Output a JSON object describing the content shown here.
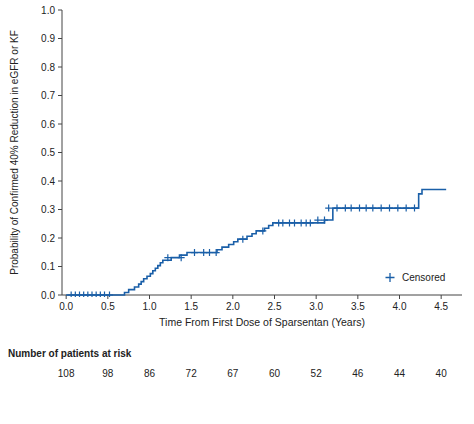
{
  "chart_data": {
    "type": "line",
    "xlabel": "Time From First Dose of Sparsentan (Years)",
    "ylabel": "Probability of Confirmed 40% Reduction in eGFR or KF",
    "xlim": [
      -0.05,
      4.75
    ],
    "ylim": [
      0.0,
      1.0
    ],
    "xticks": [
      {
        "value": 0.0,
        "label": "0.0"
      },
      0.5,
      {
        "value": 1.0,
        "label": "1.0"
      },
      1.5,
      {
        "value": 2.0,
        "label": "2.0"
      },
      2.5,
      {
        "value": 3.0,
        "label": "3.0"
      },
      3.5,
      {
        "value": 4.0,
        "label": "4.0"
      },
      4.5
    ],
    "yticks": [
      {
        "value": 0.0,
        "label": "0.0"
      },
      0.1,
      0.2,
      0.3,
      0.4,
      0.5,
      0.6,
      0.7,
      0.8,
      0.9,
      {
        "value": 1.0,
        "label": "1.0"
      }
    ],
    "legend": "lower right",
    "series": [
      {
        "type": "line",
        "line_style": "step",
        "color": "#1a5fa8",
        "x": [
          0.0,
          0.56,
          0.7,
          0.75,
          0.82,
          0.87,
          0.9,
          0.93,
          0.97,
          1.01,
          1.04,
          1.07,
          1.1,
          1.13,
          1.16,
          1.2,
          1.26,
          1.32,
          1.36,
          1.41,
          1.45,
          1.49,
          1.53,
          1.57,
          1.62,
          1.68,
          1.73,
          1.81,
          1.87,
          1.95,
          2.01,
          2.06,
          2.11,
          2.17,
          2.23,
          2.28,
          2.34,
          2.38,
          2.43,
          2.48,
          2.54,
          2.58,
          2.64,
          2.71,
          2.76,
          2.82,
          2.87,
          2.92,
          3.02,
          3.1,
          3.2,
          3.25,
          3.3,
          3.35,
          3.4,
          3.45,
          3.5,
          3.55,
          3.6,
          3.65,
          3.7,
          3.75,
          3.8,
          3.85,
          3.9,
          3.95,
          4.0,
          4.05,
          4.1,
          4.15,
          4.2,
          4.23,
          4.27,
          4.3,
          4.35,
          4.4,
          4.45,
          4.5,
          4.56
        ],
        "values": [
          0.0,
          0.0,
          0.009,
          0.019,
          0.028,
          0.038,
          0.047,
          0.057,
          0.066,
          0.075,
          0.085,
          0.094,
          0.103,
          0.113,
          0.122,
          0.122,
          0.131,
          0.131,
          0.14,
          0.14,
          0.149,
          0.149,
          0.149,
          0.149,
          0.149,
          0.149,
          0.149,
          0.159,
          0.168,
          0.177,
          0.187,
          0.196,
          0.196,
          0.206,
          0.215,
          0.225,
          0.225,
          0.234,
          0.244,
          0.253,
          0.253,
          0.253,
          0.253,
          0.253,
          0.253,
          0.253,
          0.253,
          0.253,
          0.253,
          0.263,
          0.305,
          0.305,
          0.305,
          0.305,
          0.305,
          0.305,
          0.305,
          0.305,
          0.305,
          0.305,
          0.305,
          0.305,
          0.305,
          0.305,
          0.305,
          0.305,
          0.305,
          0.305,
          0.305,
          0.305,
          0.305,
          0.355,
          0.37,
          0.37,
          0.37,
          0.37,
          0.37,
          0.37,
          0.37
        ]
      },
      {
        "name": "Censored",
        "type": "scatter",
        "marker": "+",
        "color": "#1a5fa8",
        "x": [
          0.06,
          0.11,
          0.16,
          0.21,
          0.26,
          0.31,
          0.36,
          0.41,
          0.46,
          0.52,
          1.22,
          1.38,
          1.54,
          1.65,
          1.72,
          1.8,
          2.12,
          2.36,
          2.55,
          2.6,
          2.68,
          2.74,
          2.82,
          2.88,
          2.93,
          3.02,
          3.1,
          3.15,
          3.25,
          3.35,
          3.42,
          3.52,
          3.6,
          3.68,
          3.78,
          3.88,
          3.98,
          4.08,
          4.18
        ],
        "values": [
          0.0,
          0.0,
          0.0,
          0.0,
          0.0,
          0.0,
          0.0,
          0.0,
          0.0,
          0.0,
          0.131,
          0.131,
          0.149,
          0.149,
          0.149,
          0.149,
          0.196,
          0.225,
          0.253,
          0.253,
          0.253,
          0.253,
          0.253,
          0.253,
          0.253,
          0.263,
          0.263,
          0.305,
          0.305,
          0.305,
          0.305,
          0.305,
          0.305,
          0.305,
          0.305,
          0.305,
          0.305,
          0.305,
          0.305
        ]
      }
    ],
    "risk_table": {
      "label": "Number of patients at risk",
      "x": [
        0.0,
        0.5,
        1.0,
        1.5,
        2.0,
        2.5,
        3.0,
        3.5,
        4.0,
        4.5
      ],
      "values": [
        108,
        98,
        86,
        72,
        67,
        60,
        52,
        46,
        44,
        40
      ]
    }
  }
}
